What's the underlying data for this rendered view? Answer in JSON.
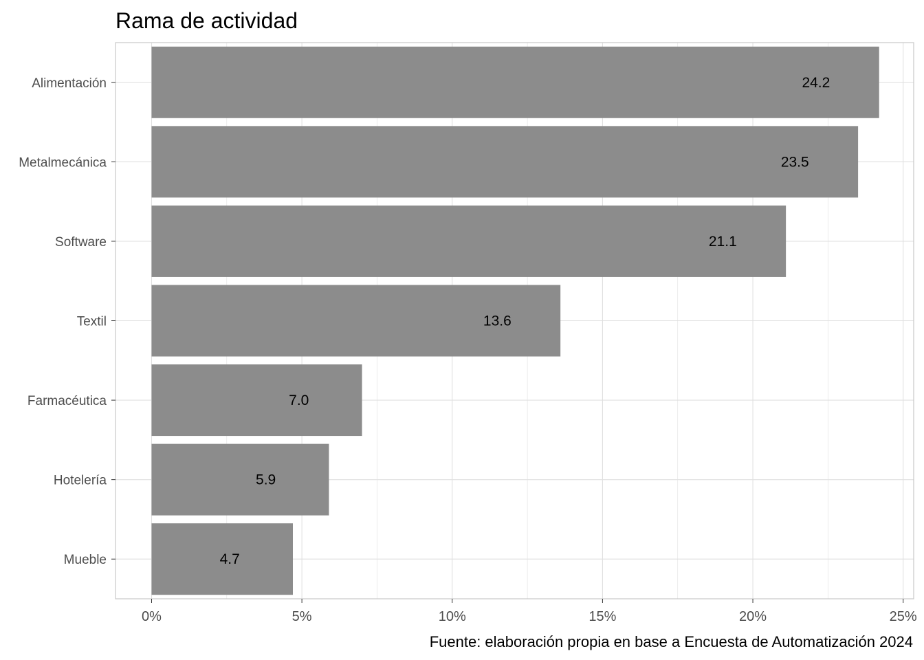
{
  "chart_data": {
    "type": "bar",
    "orientation": "horizontal",
    "title": "Rama de actividad",
    "caption": "Fuente: elaboración propia en base a Encuesta de Automatización 2024",
    "xlabel": "",
    "ylabel": "",
    "categories": [
      "Alimentación",
      "Metalmecánica",
      "Software",
      "Textil",
      "Farmacéutica",
      "Hotelería",
      "Mueble"
    ],
    "values": [
      24.2,
      23.5,
      21.1,
      13.6,
      7.0,
      5.9,
      4.7
    ],
    "value_labels": [
      "24.2",
      "23.5",
      "21.1",
      "13.6",
      "7.0",
      "5.9",
      "4.7"
    ],
    "xlim": [
      0,
      25
    ],
    "x_ticks": [
      0,
      5,
      10,
      15,
      20,
      25
    ],
    "x_tick_labels": [
      "0%",
      "5%",
      "10%",
      "15%",
      "20%",
      "25%"
    ],
    "grid": true,
    "legend": "none",
    "colors": {
      "bar": "#8c8c8c",
      "grid": "#e0e0e0",
      "panel_border": "#c8c8c8"
    }
  }
}
